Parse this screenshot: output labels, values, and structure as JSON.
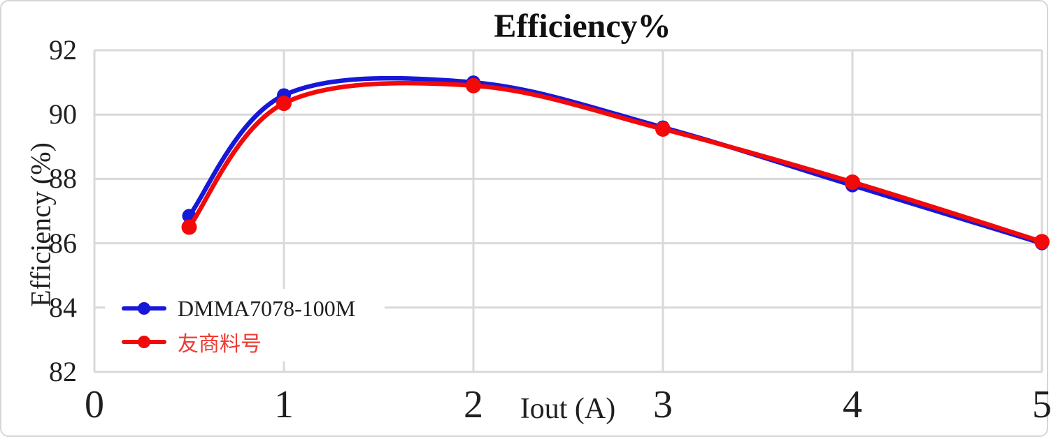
{
  "window": {
    "background": "#ffffff",
    "border_color": "#d6d6d6"
  },
  "chart_data": {
    "type": "line",
    "title": "Efficiency%",
    "xlabel": "Iout (A)",
    "ylabel": "Efficiency (%)",
    "x": [
      0.5,
      1,
      2,
      3,
      4,
      5
    ],
    "x_ticks": [
      0,
      1,
      2,
      3,
      4,
      5
    ],
    "y_ticks": [
      82,
      84,
      86,
      88,
      90,
      92
    ],
    "xlim": [
      0,
      5
    ],
    "ylim": [
      82,
      92
    ],
    "grid": true,
    "grid_color": "#d9d9d9",
    "legend_position": "inside-bottom-left",
    "series": [
      {
        "name": "DMMA7078-100M",
        "color": "#1717d9",
        "label_color": "#1f1f1f",
        "values": [
          86.85,
          90.6,
          91.0,
          89.6,
          87.8,
          86.0
        ]
      },
      {
        "name": "友商料号",
        "color": "#f20a0a",
        "label_color": "#ee3b31",
        "values": [
          86.5,
          90.35,
          90.9,
          89.55,
          87.9,
          86.05
        ]
      }
    ]
  }
}
